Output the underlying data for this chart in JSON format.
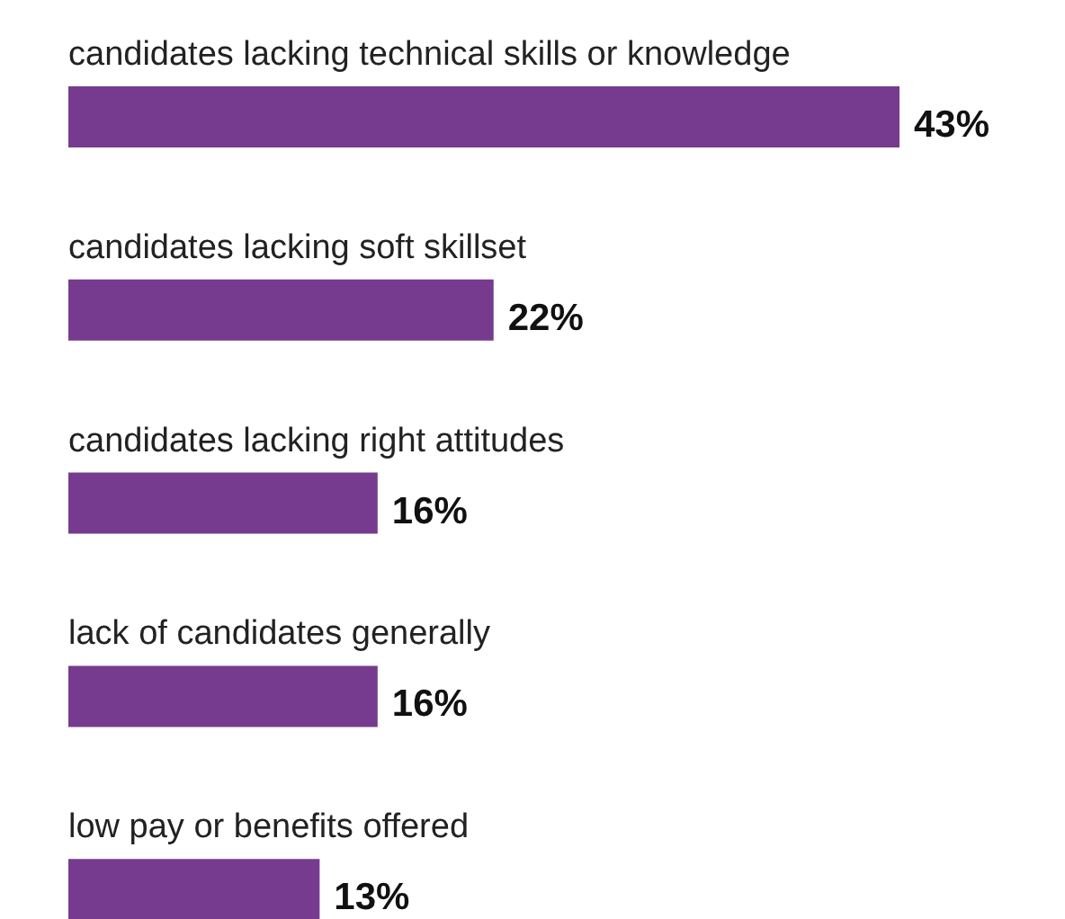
{
  "chart_data": {
    "type": "bar",
    "orientation": "horizontal",
    "categories": [
      "candidates lacking technical skills or knowledge",
      "candidates lacking soft skillset",
      "candidates lacking right attitudes",
      "lack of candidates generally",
      "low pay or benefits offered"
    ],
    "values": [
      43,
      22,
      16,
      16,
      13
    ],
    "value_labels": [
      "43%",
      "22%",
      "16%",
      "16%",
      "13%"
    ],
    "color": "#763b8f",
    "tick_labels": "y",
    "legend": false,
    "grid": false
  }
}
